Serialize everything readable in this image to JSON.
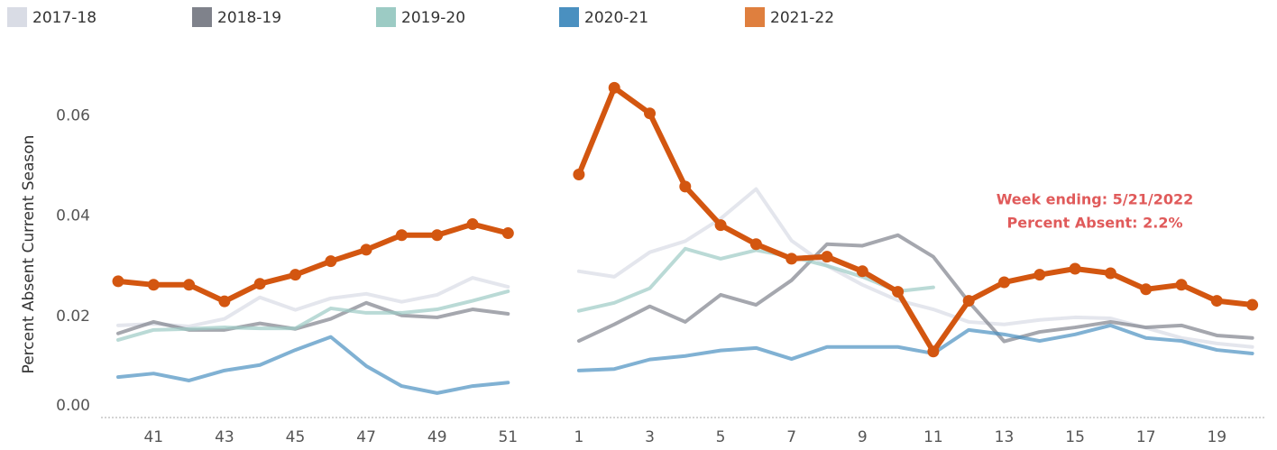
{
  "chart_data": {
    "type": "line",
    "y_label": "Percent Absent Current Season",
    "annotation": [
      "Week ending: 5/21/2022",
      "Percent Absent: 2.2%"
    ],
    "categories": [
      null,
      "41",
      null,
      "43",
      null,
      "45",
      null,
      "47",
      null,
      "49",
      null,
      "51",
      null,
      "1",
      null,
      "3",
      null,
      "5",
      null,
      "7",
      null,
      "9",
      null,
      "11",
      null,
      "13",
      null,
      "15",
      null,
      "17",
      null,
      "19",
      null
    ],
    "ylim": [
      0,
      0.068
    ],
    "yticks": [
      {
        "value": 0,
        "label": "0.00"
      },
      {
        "value": 0.02,
        "label": "0.02"
      },
      {
        "value": 0.04,
        "label": "0.04"
      },
      {
        "value": 0.06,
        "label": "0.06"
      }
    ],
    "series": [
      {
        "name": "2017-18",
        "color": "#d9dce5",
        "values": [
          0.0182,
          0.0185,
          0.018,
          0.0195,
          0.0238,
          0.0213,
          0.0236,
          0.0245,
          0.0229,
          0.0243,
          0.0277,
          0.0259,
          null,
          0.029,
          0.0279,
          0.0328,
          0.035,
          0.0395,
          0.0454,
          0.0351,
          0.0301,
          0.0263,
          0.0232,
          0.0214,
          0.0189,
          0.0184,
          0.0193,
          0.0198,
          0.0196,
          0.0177,
          0.0157,
          0.0146,
          0.0139
        ]
      },
      {
        "name": "2018-19",
        "color": "#7f828b",
        "values": [
          0.0166,
          0.0189,
          0.0173,
          0.0173,
          0.0186,
          0.0175,
          0.0195,
          0.0227,
          0.0202,
          0.0198,
          0.0214,
          0.0205,
          null,
          0.0151,
          0.0184,
          0.022,
          0.0189,
          0.0243,
          0.0223,
          0.0272,
          0.0344,
          0.0341,
          0.0362,
          0.0319,
          0.0229,
          0.015,
          0.0169,
          0.0178,
          0.0189,
          0.0178,
          0.0182,
          0.0162,
          0.0157
        ]
      },
      {
        "name": "2019-20",
        "color": "#9ccbc4",
        "values": [
          0.0153,
          0.0173,
          0.0175,
          0.0178,
          0.0176,
          0.0176,
          0.0216,
          0.0207,
          0.0207,
          0.0214,
          0.0231,
          0.025,
          null,
          0.0211,
          0.0227,
          0.0256,
          0.0335,
          0.0315,
          0.0332,
          0.0319,
          0.0301,
          0.0279,
          0.025,
          0.0258,
          null,
          null,
          null,
          null,
          null,
          null,
          null,
          null,
          null
        ]
      },
      {
        "name": "2020-21",
        "color": "#4a90c0",
        "values": [
          0.0079,
          0.0086,
          0.0072,
          0.0092,
          0.0103,
          0.0133,
          0.0159,
          0.0101,
          0.0061,
          0.0047,
          0.0061,
          0.0068,
          null,
          0.0092,
          0.0095,
          0.0114,
          0.0121,
          0.0132,
          0.0137,
          0.0115,
          0.0139,
          0.0139,
          0.0139,
          0.0126,
          0.0173,
          0.0164,
          0.0151,
          0.0164,
          0.0182,
          0.0157,
          0.0151,
          0.0133,
          0.0126
        ]
      },
      {
        "name": "2021-22",
        "color": "#df7f3e",
        "values": [
          0.027,
          0.0263,
          0.0263,
          0.023,
          0.0265,
          0.0283,
          0.031,
          0.0333,
          0.0362,
          0.0362,
          0.0384,
          0.0366,
          null,
          0.0483,
          0.0656,
          0.0605,
          0.0459,
          0.0382,
          0.0344,
          0.0315,
          0.0319,
          0.029,
          0.0249,
          0.013,
          0.0231,
          0.0268,
          0.0283,
          0.0295,
          0.0286,
          0.0254,
          0.0263,
          0.0231,
          0.0223
        ]
      }
    ]
  }
}
